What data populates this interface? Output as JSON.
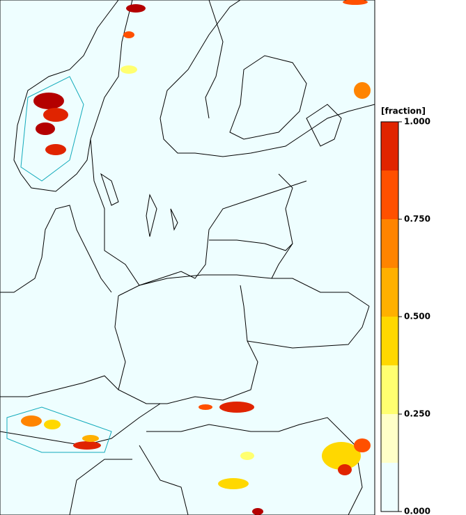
{
  "colorbar": {
    "label": "[fraction]",
    "range": [
      0,
      1
    ],
    "levels": [
      0,
      0.125,
      0.25,
      0.375,
      0.5,
      0.625,
      0.75,
      0.875,
      1
    ],
    "colors": [
      "#eefeff",
      "#ffffc8",
      "#ffff70",
      "#ffd800",
      "#ffb000",
      "#ff8400",
      "#ff5000",
      "#e02400",
      "#b40000"
    ],
    "ticks": [
      {
        "value": 0,
        "label": "0.000"
      },
      {
        "value": 0.25,
        "label": "0.250"
      },
      {
        "value": 0.5,
        "label": "0.500"
      },
      {
        "value": 0.75,
        "label": "0.750"
      },
      {
        "value": 1,
        "label": "1.000"
      }
    ]
  }
}
